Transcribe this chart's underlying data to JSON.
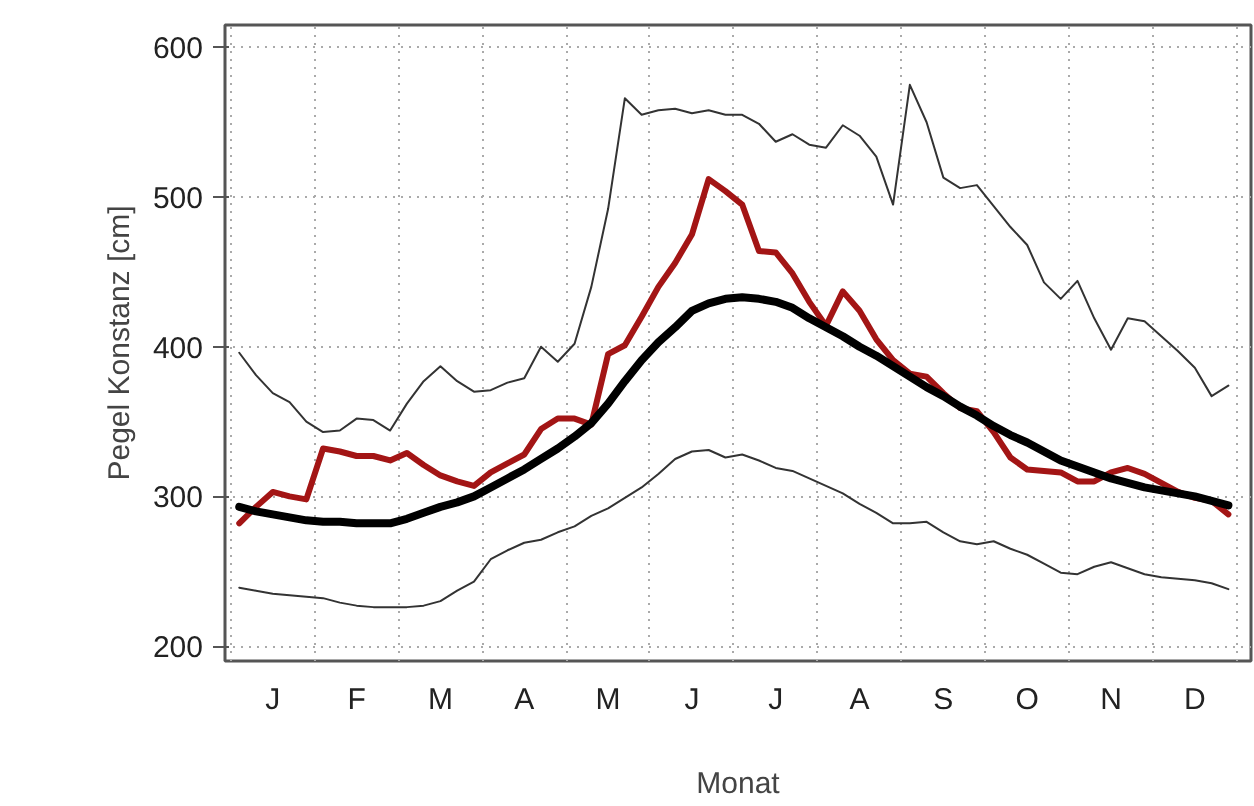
{
  "chart_data": {
    "type": "line",
    "xlabel": "Monat",
    "ylabel": "Pegel Konstanz [cm]",
    "categories": [
      null,
      null,
      "J",
      null,
      null,
      null,
      null,
      "F",
      null,
      null,
      null,
      null,
      "M",
      null,
      null,
      null,
      null,
      "A",
      null,
      null,
      null,
      null,
      "M",
      null,
      null,
      null,
      null,
      "J",
      null,
      null,
      null,
      null,
      "J",
      null,
      null,
      null,
      null,
      "A",
      null,
      null,
      null,
      null,
      "S",
      null,
      null,
      null,
      null,
      "O",
      null,
      null,
      null,
      null,
      "N",
      null,
      null,
      null,
      null,
      "D",
      null,
      null
    ],
    "ylim": [
      190,
      615
    ],
    "yticks": [
      200,
      300,
      400,
      500,
      600
    ],
    "grid": true,
    "series": [
      {
        "color": "#333333",
        "values": [
          396,
          381,
          369,
          363,
          350,
          343,
          344,
          352,
          351,
          344,
          362,
          377,
          387,
          377,
          370,
          371,
          376,
          379,
          400,
          390,
          402,
          440,
          492,
          566,
          555,
          558,
          559,
          556,
          558,
          555,
          555,
          549,
          537,
          542,
          535,
          533,
          548,
          541,
          527,
          495,
          575,
          550,
          513,
          506,
          508,
          494,
          480,
          468,
          443,
          432,
          444,
          419,
          398,
          419,
          417,
          407,
          397,
          386,
          367,
          374
        ]
      },
      {
        "color": "#333333",
        "values": [
          239,
          237,
          235,
          234,
          233,
          232,
          229,
          227,
          226,
          226,
          226,
          227,
          230,
          237,
          243,
          258,
          264,
          269,
          271,
          276,
          280,
          287,
          292,
          299,
          306,
          315,
          325,
          330,
          331,
          326,
          328,
          324,
          319,
          317,
          312,
          307,
          302,
          295,
          289,
          282,
          282,
          283,
          276,
          270,
          268,
          270,
          265,
          261,
          255,
          249,
          248,
          253,
          256,
          252,
          248,
          246,
          245,
          244,
          242,
          238
        ]
      },
      {
        "color": "#a31515",
        "values": [
          282,
          293,
          303,
          300,
          298,
          332,
          330,
          327,
          327,
          324,
          329,
          321,
          314,
          310,
          307,
          316,
          322,
          328,
          345,
          352,
          352,
          348,
          395,
          401,
          420,
          440,
          456,
          475,
          512,
          504,
          495,
          464,
          463,
          449,
          430,
          414,
          437,
          424,
          405,
          391,
          382,
          380,
          369,
          359,
          357,
          343,
          326,
          318,
          317,
          316,
          310,
          310,
          316,
          319,
          315,
          309,
          303,
          299,
          297,
          288
        ]
      },
      {
        "color": "#000000",
        "values": [
          293,
          290,
          288,
          286,
          284,
          283,
          283,
          282,
          282,
          282,
          285,
          289,
          293,
          296,
          300,
          306,
          312,
          318,
          325,
          332,
          340,
          349,
          362,
          377,
          391,
          403,
          413,
          424,
          429,
          432,
          433,
          432,
          430,
          426,
          419,
          413,
          407,
          400,
          394,
          387,
          380,
          373,
          367,
          360,
          354,
          347,
          341,
          336,
          330,
          324,
          320,
          316,
          312,
          309,
          306,
          304,
          302,
          300,
          297,
          294
        ]
      }
    ]
  }
}
